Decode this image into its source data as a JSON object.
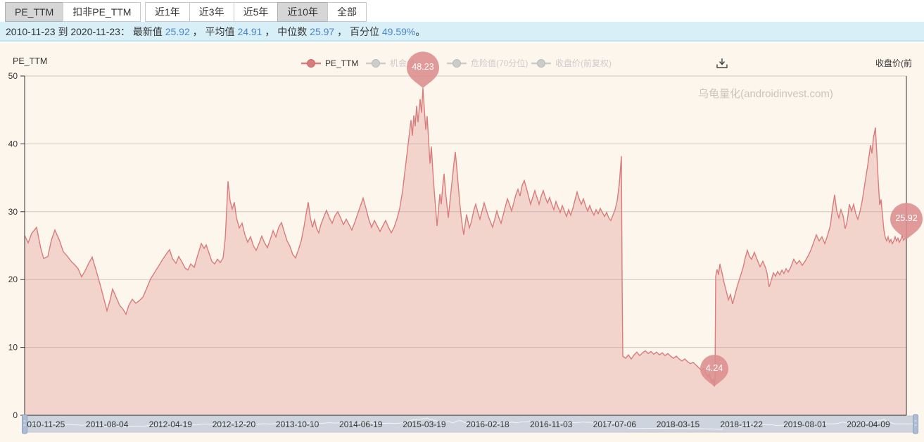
{
  "tabs": [
    {
      "label": "PE_TTM",
      "selected": true
    },
    {
      "label": "扣非PE_TTM",
      "selected": false
    }
  ],
  "range_buttons": [
    {
      "label": "近1年",
      "selected": false
    },
    {
      "label": "近3年",
      "selected": false
    },
    {
      "label": "近5年",
      "selected": false
    },
    {
      "label": "近10年",
      "selected": true
    },
    {
      "label": "全部",
      "selected": false
    }
  ],
  "summary": {
    "date_range": "2010-11-23 到 2020-11-23：",
    "items": [
      {
        "label": "最新值 ",
        "value": "25.92"
      },
      {
        "label": "平均值 ",
        "value": "24.91"
      },
      {
        "label": "中位数 ",
        "value": "25.97"
      },
      {
        "label": "百分位 ",
        "value": "49.59%"
      }
    ],
    "separator": "，",
    "terminal": "。"
  },
  "watermark": "乌龟量化(androidinvest.com)",
  "toolbar": {
    "download_icon": "save-as-image"
  },
  "chart_data": {
    "type": "area",
    "title": "PE_TTM",
    "y_axis_label": "PE_TTM",
    "y2_axis_label": "收盘价(前",
    "ylim": [
      0,
      50
    ],
    "y_ticks": [
      0,
      10,
      20,
      30,
      40,
      50
    ],
    "grid": true,
    "legend_position": "top-center",
    "x_range": [
      "2010-11-23",
      "2020-11-23"
    ],
    "x_tick_labels": [
      "2010-11-25",
      "2011-08-04",
      "2012-04-19",
      "2012-12-20",
      "2013-10-10",
      "2014-06-19",
      "2015-03-19",
      "2016-02-18",
      "2016-11-03",
      "2017-07-06",
      "2018-03-15",
      "2018-11-22",
      "2019-08-01",
      "2020-04-09"
    ],
    "legend": [
      {
        "label": "PE_TTM",
        "active": true
      },
      {
        "label": "机会值",
        "active": false
      },
      {
        "label": "危险值(70分位)",
        "active": false
      },
      {
        "label": "收盘价(前复权)",
        "active": false
      }
    ],
    "colors": {
      "line": "#d87c7c",
      "area": "rgba(216,124,124,0.28)",
      "pin": "#dc8d8d",
      "inactive_legend": "#cccccc",
      "background": "#fdf6ec",
      "info_bar": "#d8eff7",
      "number_blue": "#4a86c9"
    },
    "markers": [
      {
        "id": "max",
        "label": "48.23",
        "value": 48.23,
        "offset": 566
      },
      {
        "id": "min",
        "label": "4.24",
        "value": 4.24,
        "offset": 980
      },
      {
        "id": "last",
        "label": "25.92",
        "value": 25.92,
        "offset": 1253
      }
    ],
    "series": [
      [
        0,
        26.5
      ],
      [
        5,
        25.4
      ],
      [
        10,
        26.8
      ],
      [
        17,
        27.7
      ],
      [
        23,
        24.6
      ],
      [
        27,
        23.1
      ],
      [
        33,
        23.4
      ],
      [
        38,
        25.8
      ],
      [
        43,
        27.3
      ],
      [
        49,
        25.9
      ],
      [
        55,
        24.1
      ],
      [
        61,
        23.4
      ],
      [
        66,
        22.7
      ],
      [
        71,
        22.2
      ],
      [
        76,
        21.6
      ],
      [
        81,
        20.4
      ],
      [
        86,
        21.3
      ],
      [
        91,
        22.4
      ],
      [
        96,
        23.3
      ],
      [
        102,
        21.2
      ],
      [
        108,
        19.0
      ],
      [
        113,
        17.0
      ],
      [
        117,
        15.4
      ],
      [
        121,
        16.8
      ],
      [
        125,
        18.6
      ],
      [
        130,
        17.4
      ],
      [
        135,
        16.2
      ],
      [
        140,
        15.6
      ],
      [
        144,
        14.9
      ],
      [
        148,
        16.2
      ],
      [
        153,
        17.1
      ],
      [
        158,
        16.5
      ],
      [
        163,
        16.9
      ],
      [
        168,
        17.4
      ],
      [
        173,
        18.6
      ],
      [
        179,
        20.1
      ],
      [
        185,
        21.1
      ],
      [
        191,
        22.1
      ],
      [
        197,
        23.1
      ],
      [
        203,
        24.0
      ],
      [
        206,
        24.4
      ],
      [
        210,
        23.1
      ],
      [
        215,
        22.4
      ],
      [
        219,
        23.4
      ],
      [
        223,
        22.7
      ],
      [
        228,
        21.7
      ],
      [
        232,
        21.4
      ],
      [
        236,
        22.3
      ],
      [
        241,
        21.8
      ],
      [
        246,
        23.6
      ],
      [
        251,
        25.3
      ],
      [
        255,
        24.6
      ],
      [
        258,
        25.1
      ],
      [
        262,
        23.9
      ],
      [
        266,
        22.7
      ],
      [
        270,
        22.3
      ],
      [
        274,
        23.0
      ],
      [
        278,
        22.5
      ],
      [
        282,
        23.2
      ],
      [
        285,
        26.0
      ],
      [
        287,
        30.0
      ],
      [
        289,
        34.5
      ],
      [
        292,
        31.6
      ],
      [
        295,
        30.4
      ],
      [
        298,
        31.4
      ],
      [
        301,
        29.1
      ],
      [
        305,
        27.6
      ],
      [
        309,
        28.3
      ],
      [
        313,
        26.6
      ],
      [
        317,
        25.5
      ],
      [
        321,
        26.3
      ],
      [
        325,
        25.0
      ],
      [
        329,
        24.3
      ],
      [
        333,
        25.3
      ],
      [
        337,
        26.4
      ],
      [
        341,
        25.4
      ],
      [
        345,
        24.7
      ],
      [
        349,
        25.9
      ],
      [
        353,
        27.2
      ],
      [
        357,
        26.3
      ],
      [
        361,
        27.7
      ],
      [
        365,
        28.4
      ],
      [
        369,
        27.0
      ],
      [
        373,
        25.7
      ],
      [
        377,
        24.9
      ],
      [
        381,
        23.7
      ],
      [
        385,
        23.2
      ],
      [
        389,
        24.4
      ],
      [
        393,
        25.7
      ],
      [
        397,
        27.8
      ],
      [
        401,
        30.3
      ],
      [
        403,
        31.4
      ],
      [
        406,
        29.1
      ],
      [
        409,
        27.7
      ],
      [
        412,
        28.8
      ],
      [
        415,
        27.5
      ],
      [
        418,
        26.9
      ],
      [
        421,
        28.1
      ],
      [
        425,
        29.2
      ],
      [
        429,
        30.2
      ],
      [
        433,
        29.1
      ],
      [
        437,
        28.3
      ],
      [
        441,
        29.4
      ],
      [
        445,
        30.0
      ],
      [
        449,
        29.1
      ],
      [
        453,
        28.1
      ],
      [
        457,
        28.9
      ],
      [
        461,
        28.1
      ],
      [
        465,
        27.3
      ],
      [
        469,
        28.4
      ],
      [
        473,
        29.6
      ],
      [
        477,
        30.8
      ],
      [
        481,
        32.0
      ],
      [
        485,
        30.5
      ],
      [
        489,
        28.9
      ],
      [
        493,
        27.7
      ],
      [
        497,
        28.7
      ],
      [
        501,
        27.9
      ],
      [
        505,
        27.1
      ],
      [
        509,
        27.9
      ],
      [
        513,
        28.7
      ],
      [
        517,
        27.7
      ],
      [
        521,
        26.9
      ],
      [
        525,
        27.7
      ],
      [
        529,
        28.9
      ],
      [
        533,
        30.5
      ],
      [
        537,
        33.0
      ],
      [
        541,
        36.5
      ],
      [
        545,
        40.0
      ],
      [
        549,
        43.5
      ],
      [
        551,
        41.2
      ],
      [
        553,
        44.2
      ],
      [
        555,
        42.6
      ],
      [
        557,
        45.6
      ],
      [
        559,
        43.2
      ],
      [
        562,
        46.6
      ],
      [
        564,
        44.6
      ],
      [
        566,
        48.23
      ],
      [
        568,
        45.1
      ],
      [
        570,
        42.1
      ],
      [
        572,
        44.1
      ],
      [
        574,
        40.6
      ],
      [
        576,
        37.1
      ],
      [
        578,
        39.6
      ],
      [
        580,
        36.1
      ],
      [
        582,
        33.1
      ],
      [
        584,
        30.6
      ],
      [
        586,
        27.9
      ],
      [
        588,
        30.1
      ],
      [
        590,
        32.6
      ],
      [
        592,
        31.1
      ],
      [
        594,
        33.6
      ],
      [
        596,
        35.6
      ],
      [
        598,
        33.1
      ],
      [
        600,
        31.1
      ],
      [
        602,
        29.1
      ],
      [
        604,
        31.1
      ],
      [
        606,
        33.1
      ],
      [
        608,
        35.1
      ],
      [
        610,
        37.1
      ],
      [
        612,
        38.8
      ],
      [
        614,
        36.6
      ],
      [
        616,
        34.1
      ],
      [
        618,
        31.6
      ],
      [
        620,
        29.6
      ],
      [
        622,
        27.9
      ],
      [
        624,
        26.6
      ],
      [
        626,
        28.1
      ],
      [
        628,
        29.6
      ],
      [
        630,
        28.6
      ],
      [
        632,
        27.6
      ],
      [
        635,
        28.6
      ],
      [
        638,
        30.1
      ],
      [
        641,
        31.1
      ],
      [
        644,
        29.9
      ],
      [
        647,
        28.9
      ],
      [
        650,
        30.1
      ],
      [
        653,
        31.3
      ],
      [
        656,
        30.3
      ],
      [
        659,
        29.3
      ],
      [
        662,
        28.5
      ],
      [
        665,
        27.7
      ],
      [
        668,
        28.9
      ],
      [
        671,
        30.1
      ],
      [
        674,
        29.1
      ],
      [
        677,
        28.3
      ],
      [
        680,
        29.5
      ],
      [
        683,
        30.7
      ],
      [
        686,
        31.9
      ],
      [
        689,
        31.1
      ],
      [
        692,
        30.1
      ],
      [
        695,
        31.3
      ],
      [
        698,
        32.5
      ],
      [
        701,
        33.3
      ],
      [
        704,
        32.3
      ],
      [
        707,
        33.9
      ],
      [
        710,
        34.6
      ],
      [
        713,
        33.5
      ],
      [
        716,
        32.3
      ],
      [
        719,
        31.1
      ],
      [
        722,
        32.1
      ],
      [
        725,
        33.1
      ],
      [
        728,
        32.1
      ],
      [
        731,
        31.1
      ],
      [
        734,
        32.3
      ],
      [
        737,
        33.1
      ],
      [
        740,
        32.1
      ],
      [
        743,
        31.3
      ],
      [
        746,
        32.1
      ],
      [
        749,
        31.1
      ],
      [
        752,
        30.3
      ],
      [
        755,
        31.5
      ],
      [
        758,
        30.7
      ],
      [
        761,
        29.9
      ],
      [
        764,
        30.9
      ],
      [
        767,
        30.1
      ],
      [
        770,
        29.3
      ],
      [
        773,
        30.3
      ],
      [
        776,
        29.5
      ],
      [
        779,
        30.5
      ],
      [
        782,
        31.7
      ],
      [
        785,
        32.9
      ],
      [
        788,
        31.9
      ],
      [
        791,
        31.1
      ],
      [
        794,
        31.9
      ],
      [
        797,
        30.9
      ],
      [
        800,
        30.1
      ],
      [
        803,
        30.9
      ],
      [
        806,
        30.1
      ],
      [
        809,
        29.5
      ],
      [
        812,
        30.3
      ],
      [
        815,
        29.7
      ],
      [
        818,
        30.5
      ],
      [
        821,
        29.9
      ],
      [
        824,
        29.3
      ],
      [
        827,
        29.9
      ],
      [
        830,
        29.1
      ],
      [
        833,
        28.7
      ],
      [
        836,
        29.5
      ],
      [
        839,
        30.3
      ],
      [
        842,
        31.6
      ],
      [
        845,
        34.1
      ],
      [
        848,
        38.2
      ],
      [
        849,
        20.0
      ],
      [
        850,
        8.7
      ],
      [
        854,
        8.4
      ],
      [
        858,
        8.9
      ],
      [
        862,
        8.3
      ],
      [
        866,
        8.9
      ],
      [
        870,
        9.3
      ],
      [
        874,
        8.8
      ],
      [
        878,
        9.2
      ],
      [
        882,
        9.5
      ],
      [
        886,
        9.1
      ],
      [
        890,
        9.4
      ],
      [
        894,
        9.0
      ],
      [
        898,
        9.3
      ],
      [
        902,
        8.9
      ],
      [
        906,
        9.2
      ],
      [
        910,
        8.8
      ],
      [
        914,
        9.1
      ],
      [
        918,
        8.7
      ],
      [
        922,
        8.4
      ],
      [
        926,
        8.7
      ],
      [
        930,
        8.3
      ],
      [
        934,
        8.0
      ],
      [
        938,
        8.3
      ],
      [
        942,
        7.9
      ],
      [
        946,
        7.6
      ],
      [
        950,
        7.8
      ],
      [
        954,
        7.4
      ],
      [
        958,
        7.0
      ],
      [
        962,
        6.6
      ],
      [
        965,
        6.9
      ],
      [
        968,
        6.2
      ],
      [
        971,
        5.7
      ],
      [
        973,
        6.1
      ],
      [
        975,
        5.3
      ],
      [
        977,
        4.9
      ],
      [
        979,
        5.4
      ],
      [
        980,
        4.24
      ],
      [
        981,
        5.0
      ],
      [
        982,
        20.5
      ],
      [
        984,
        21.5
      ],
      [
        986,
        20.7
      ],
      [
        988,
        22.3
      ],
      [
        991,
        21.0
      ],
      [
        994,
        19.5
      ],
      [
        997,
        18.3
      ],
      [
        1000,
        17.0
      ],
      [
        1003,
        17.8
      ],
      [
        1006,
        16.4
      ],
      [
        1009,
        17.6
      ],
      [
        1012,
        18.8
      ],
      [
        1015,
        19.8
      ],
      [
        1018,
        20.8
      ],
      [
        1021,
        21.8
      ],
      [
        1024,
        23.2
      ],
      [
        1027,
        24.3
      ],
      [
        1030,
        23.4
      ],
      [
        1033,
        23.0
      ],
      [
        1037,
        24.0
      ],
      [
        1041,
        22.9
      ],
      [
        1045,
        21.9
      ],
      [
        1049,
        22.7
      ],
      [
        1053,
        21.7
      ],
      [
        1055,
        20.9
      ],
      [
        1058,
        18.9
      ],
      [
        1061,
        19.9
      ],
      [
        1064,
        21.0
      ],
      [
        1067,
        20.5
      ],
      [
        1070,
        21.2
      ],
      [
        1073,
        20.7
      ],
      [
        1076,
        21.4
      ],
      [
        1079,
        20.9
      ],
      [
        1082,
        21.6
      ],
      [
        1085,
        21.1
      ],
      [
        1089,
        21.9
      ],
      [
        1093,
        23.0
      ],
      [
        1097,
        22.3
      ],
      [
        1101,
        22.8
      ],
      [
        1105,
        22.1
      ],
      [
        1109,
        22.7
      ],
      [
        1113,
        23.4
      ],
      [
        1117,
        24.3
      ],
      [
        1121,
        25.4
      ],
      [
        1125,
        26.6
      ],
      [
        1129,
        25.7
      ],
      [
        1133,
        26.3
      ],
      [
        1137,
        25.3
      ],
      [
        1141,
        26.5
      ],
      [
        1145,
        28.0
      ],
      [
        1148,
        30.5
      ],
      [
        1151,
        32.5
      ],
      [
        1154,
        30.1
      ],
      [
        1157,
        29.1
      ],
      [
        1160,
        30.3
      ],
      [
        1163,
        29.4
      ],
      [
        1166,
        27.5
      ],
      [
        1169,
        28.7
      ],
      [
        1172,
        31.1
      ],
      [
        1175,
        30.1
      ],
      [
        1178,
        31.1
      ],
      [
        1181,
        29.7
      ],
      [
        1184,
        28.9
      ],
      [
        1187,
        30.0
      ],
      [
        1190,
        31.5
      ],
      [
        1193,
        33.5
      ],
      [
        1196,
        35.5
      ],
      [
        1199,
        37.5
      ],
      [
        1202,
        39.8
      ],
      [
        1204,
        38.6
      ],
      [
        1206,
        40.8
      ],
      [
        1209,
        42.4
      ],
      [
        1211,
        38.5
      ],
      [
        1213,
        34.5
      ],
      [
        1215,
        31.0
      ],
      [
        1217,
        31.8
      ],
      [
        1219,
        29.5
      ],
      [
        1221,
        27.3
      ],
      [
        1223,
        26.2
      ],
      [
        1225,
        25.7
      ],
      [
        1227,
        26.3
      ],
      [
        1229,
        25.5
      ],
      [
        1231,
        25.9
      ],
      [
        1233,
        25.3
      ],
      [
        1235,
        25.7
      ],
      [
        1237,
        26.3
      ],
      [
        1239,
        25.7
      ],
      [
        1241,
        26.1
      ],
      [
        1243,
        25.5
      ],
      [
        1245,
        25.9
      ],
      [
        1247,
        26.5
      ],
      [
        1249,
        25.8
      ],
      [
        1251,
        26.1
      ],
      [
        1253,
        25.92
      ]
    ]
  },
  "data_zoom": {
    "start_label": "2010-11-25",
    "end_label": "2020-04-09"
  }
}
